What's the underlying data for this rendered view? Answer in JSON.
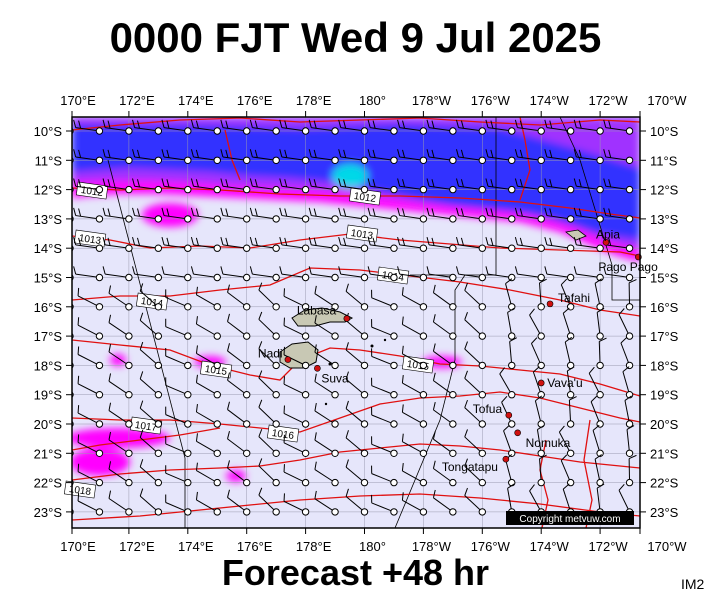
{
  "header": {
    "title": "0000 FJT Wed 9 Jul 2025"
  },
  "footer": {
    "forecast_label": "Forecast +48 hr",
    "image_code": "IM2",
    "copyright": "Copyright metvuw.com"
  },
  "map": {
    "lon_labels": [
      "170°E",
      "172°E",
      "174°E",
      "176°E",
      "178°E",
      "180°",
      "178°W",
      "176°W",
      "174°W",
      "172°W",
      "170°W"
    ],
    "lat_labels": [
      "10°S",
      "11°S",
      "12°S",
      "13°S",
      "14°S",
      "15°S",
      "16°S",
      "17°S",
      "18°S",
      "19°S",
      "20°S",
      "21°S",
      "22°S",
      "23°S"
    ],
    "isobar_labels": [
      "1012",
      "1012",
      "1013",
      "1013",
      "1014",
      "1014",
      "1015",
      "1015",
      "1016",
      "1017",
      "1018"
    ],
    "places": [
      {
        "name": "Labasa",
        "lon": 179.4,
        "lat": -16.4
      },
      {
        "name": "Nadi",
        "lon": 177.4,
        "lat": -17.8
      },
      {
        "name": "Suva",
        "lon": 178.4,
        "lat": -18.1
      },
      {
        "name": "Apia",
        "lon": -171.8,
        "lat": -13.8
      },
      {
        "name": "Pago Pago",
        "lon": -170.7,
        "lat": -14.3
      },
      {
        "name": "Tafahi",
        "lon": -173.7,
        "lat": -15.9
      },
      {
        "name": "Vava'u",
        "lon": -174.0,
        "lat": -18.6
      },
      {
        "name": "Tofua",
        "lon": -175.1,
        "lat": -19.7
      },
      {
        "name": "Nomuka",
        "lon": -174.8,
        "lat": -20.3
      },
      {
        "name": "Tongatapu",
        "lon": -175.2,
        "lat": -21.2
      }
    ],
    "colors": {
      "background": "#e6e6fb",
      "isobar": "#e01010",
      "rain_light": "#ff00ff",
      "rain_mid": "#a030ff",
      "rain_heavy": "#3030ff",
      "rain_extreme": "#00d8e8"
    }
  }
}
